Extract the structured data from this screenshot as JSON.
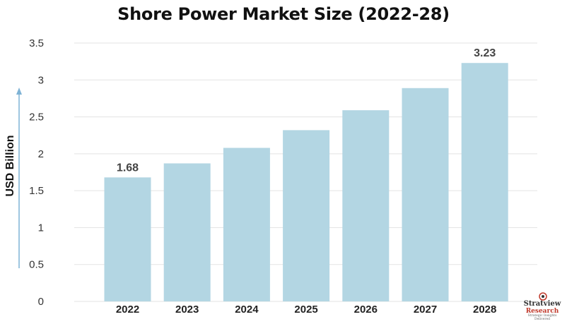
{
  "chart_data": {
    "type": "bar",
    "title": "Shore Power Market Size (2022-28)",
    "ylabel": "USD Billion",
    "xlabel": "",
    "categories": [
      "2022",
      "2023",
      "2024",
      "2025",
      "2026",
      "2027",
      "2028"
    ],
    "values": [
      1.68,
      1.87,
      2.08,
      2.32,
      2.59,
      2.89,
      3.23
    ],
    "data_labels": [
      "1.68",
      "",
      "",
      "",
      "",
      "",
      "3.23"
    ],
    "yticks": [
      "0",
      "0.5",
      "1",
      "1.5",
      "2",
      "2.5",
      "3",
      "3.5"
    ],
    "ylim": [
      0,
      3.5
    ],
    "grid": true,
    "legend": "none",
    "colors": {
      "bar": "#b3d6e3",
      "grid": "#e3e3e3",
      "arrow": "#7fb3d5"
    }
  },
  "logo": {
    "brand_top": "Stratview",
    "brand_bottom": "Research",
    "tagline": "Strategic Insights Delivered"
  }
}
